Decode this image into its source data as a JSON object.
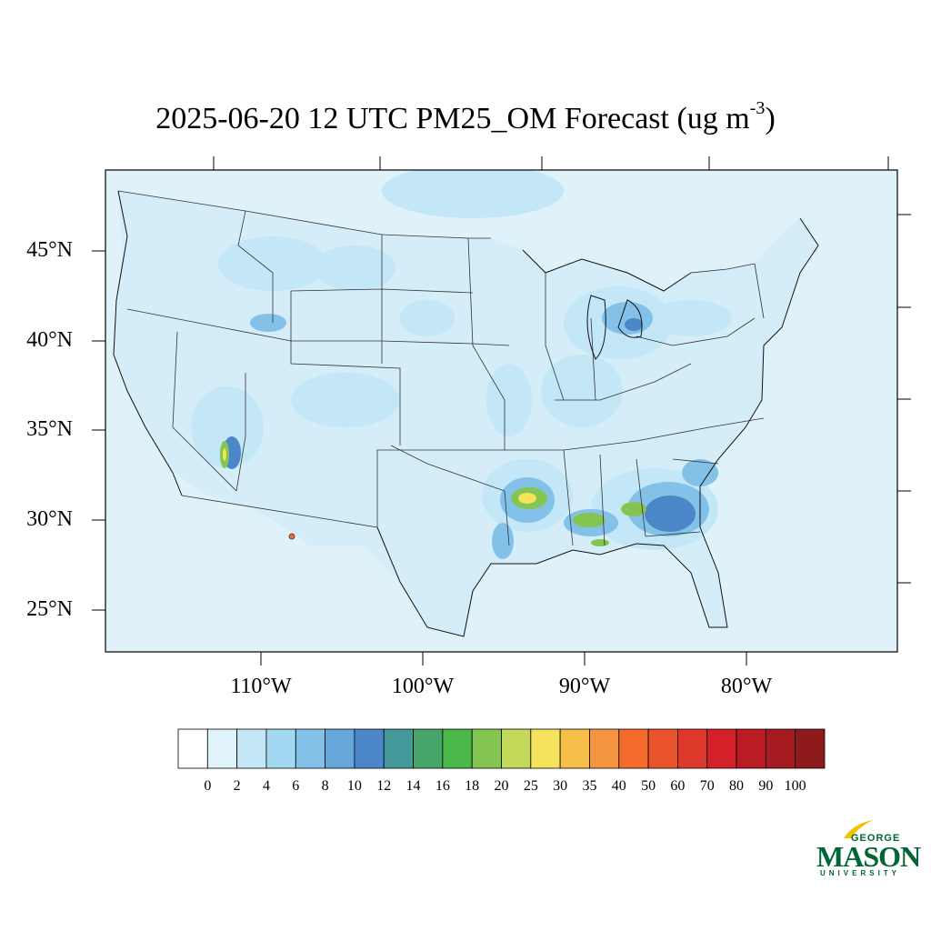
{
  "title": {
    "main": "2025-06-20 12 UTC PM25_OM Forecast (ug m",
    "sup": "-3",
    "close": ")"
  },
  "latitude_labels": [
    "45°N",
    "40°N",
    "35°N",
    "30°N",
    "25°N"
  ],
  "longitude_labels": [
    "110°W",
    "100°W",
    "90°W",
    "80°W"
  ],
  "colorbar": {
    "labels": [
      "0",
      "2",
      "4",
      "6",
      "8",
      "10",
      "12",
      "14",
      "16",
      "18",
      "20",
      "25",
      "30",
      "35",
      "40",
      "50",
      "60",
      "70",
      "80",
      "90",
      "100"
    ],
    "colors": [
      "#ffffff",
      "#e0f3fb",
      "#c4e7f8",
      "#a3d8f3",
      "#84c1e8",
      "#66a6db",
      "#4a86c8",
      "#44999b",
      "#46a66a",
      "#4db84a",
      "#84c551",
      "#c3d95a",
      "#f6e35d",
      "#f7be4a",
      "#f69540",
      "#f26b2b",
      "#e8532c",
      "#dd3829",
      "#d32029",
      "#ba1c24",
      "#a51b20",
      "#8f1a1c"
    ]
  },
  "logo": {
    "line1": "GEORGE",
    "line2": "MASON",
    "line3": "UNIVERSITY"
  }
}
